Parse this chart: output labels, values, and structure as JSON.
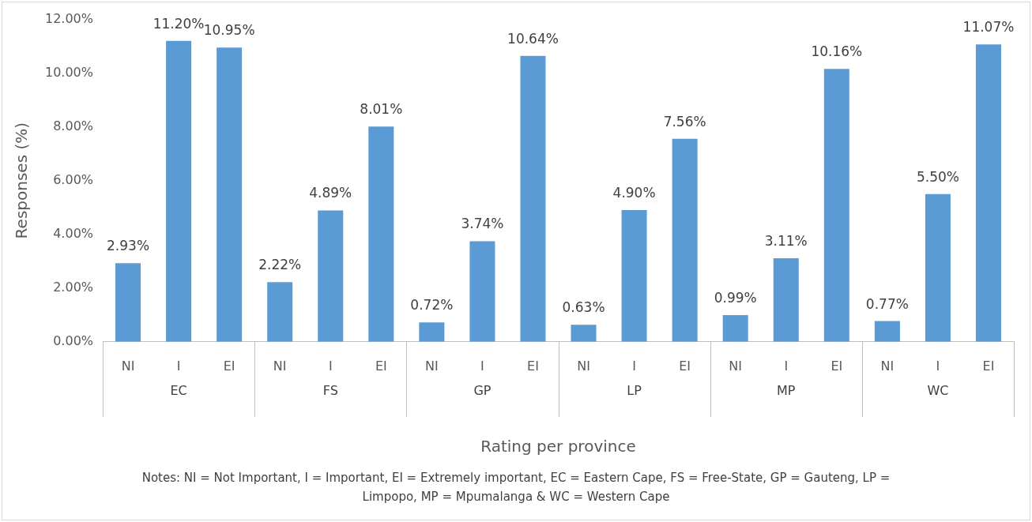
{
  "chart_data": {
    "type": "bar",
    "xlabel": "Rating per province",
    "ylabel": "Responses (%)",
    "categories": [
      "NI",
      "I",
      "EI",
      "NI",
      "I",
      "EI",
      "NI",
      "I",
      "EI",
      "NI",
      "I",
      "EI",
      "NI",
      "I",
      "EI",
      "NI",
      "I",
      "EI"
    ],
    "values": [
      2.93,
      11.2,
      10.95,
      2.22,
      4.89,
      8.01,
      0.72,
      3.74,
      10.64,
      0.63,
      4.9,
      7.56,
      0.99,
      3.11,
      10.16,
      0.77,
      5.5,
      11.07
    ],
    "value_labels": [
      "2.93%",
      "11.20%",
      "10.95%",
      "2.22%",
      "4.89%",
      "8.01%",
      "0.72%",
      "3.74%",
      "10.64%",
      "0.63%",
      "4.90%",
      "7.56%",
      "0.99%",
      "3.11%",
      "10.16%",
      "0.77%",
      "5.50%",
      "11.07%"
    ],
    "color": "#5b9bd5",
    "ylim": [
      0,
      12
    ],
    "yticks": [
      {
        "value": 0,
        "label": "0.00%"
      },
      {
        "value": 2,
        "label": "2.00%"
      },
      {
        "value": 4,
        "label": "4.00%"
      },
      {
        "value": 6,
        "label": "6.00%"
      },
      {
        "value": 8,
        "label": "8.00%"
      },
      {
        "value": 10,
        "label": "10.00%"
      },
      {
        "value": 12,
        "label": "12.00%"
      }
    ],
    "grid": false,
    "legend": false,
    "annotations": [
      "EC",
      "FS",
      "GP",
      "LP",
      "MP",
      "WC",
      "Notes: NI = Not Important, I = Important, EI = Extremely important, EC = Eastern Cape, FS = Free-State, GP = Gauteng, LP = Limpopo, MP = Mpumalanga & WC = Western Cape"
    ]
  }
}
